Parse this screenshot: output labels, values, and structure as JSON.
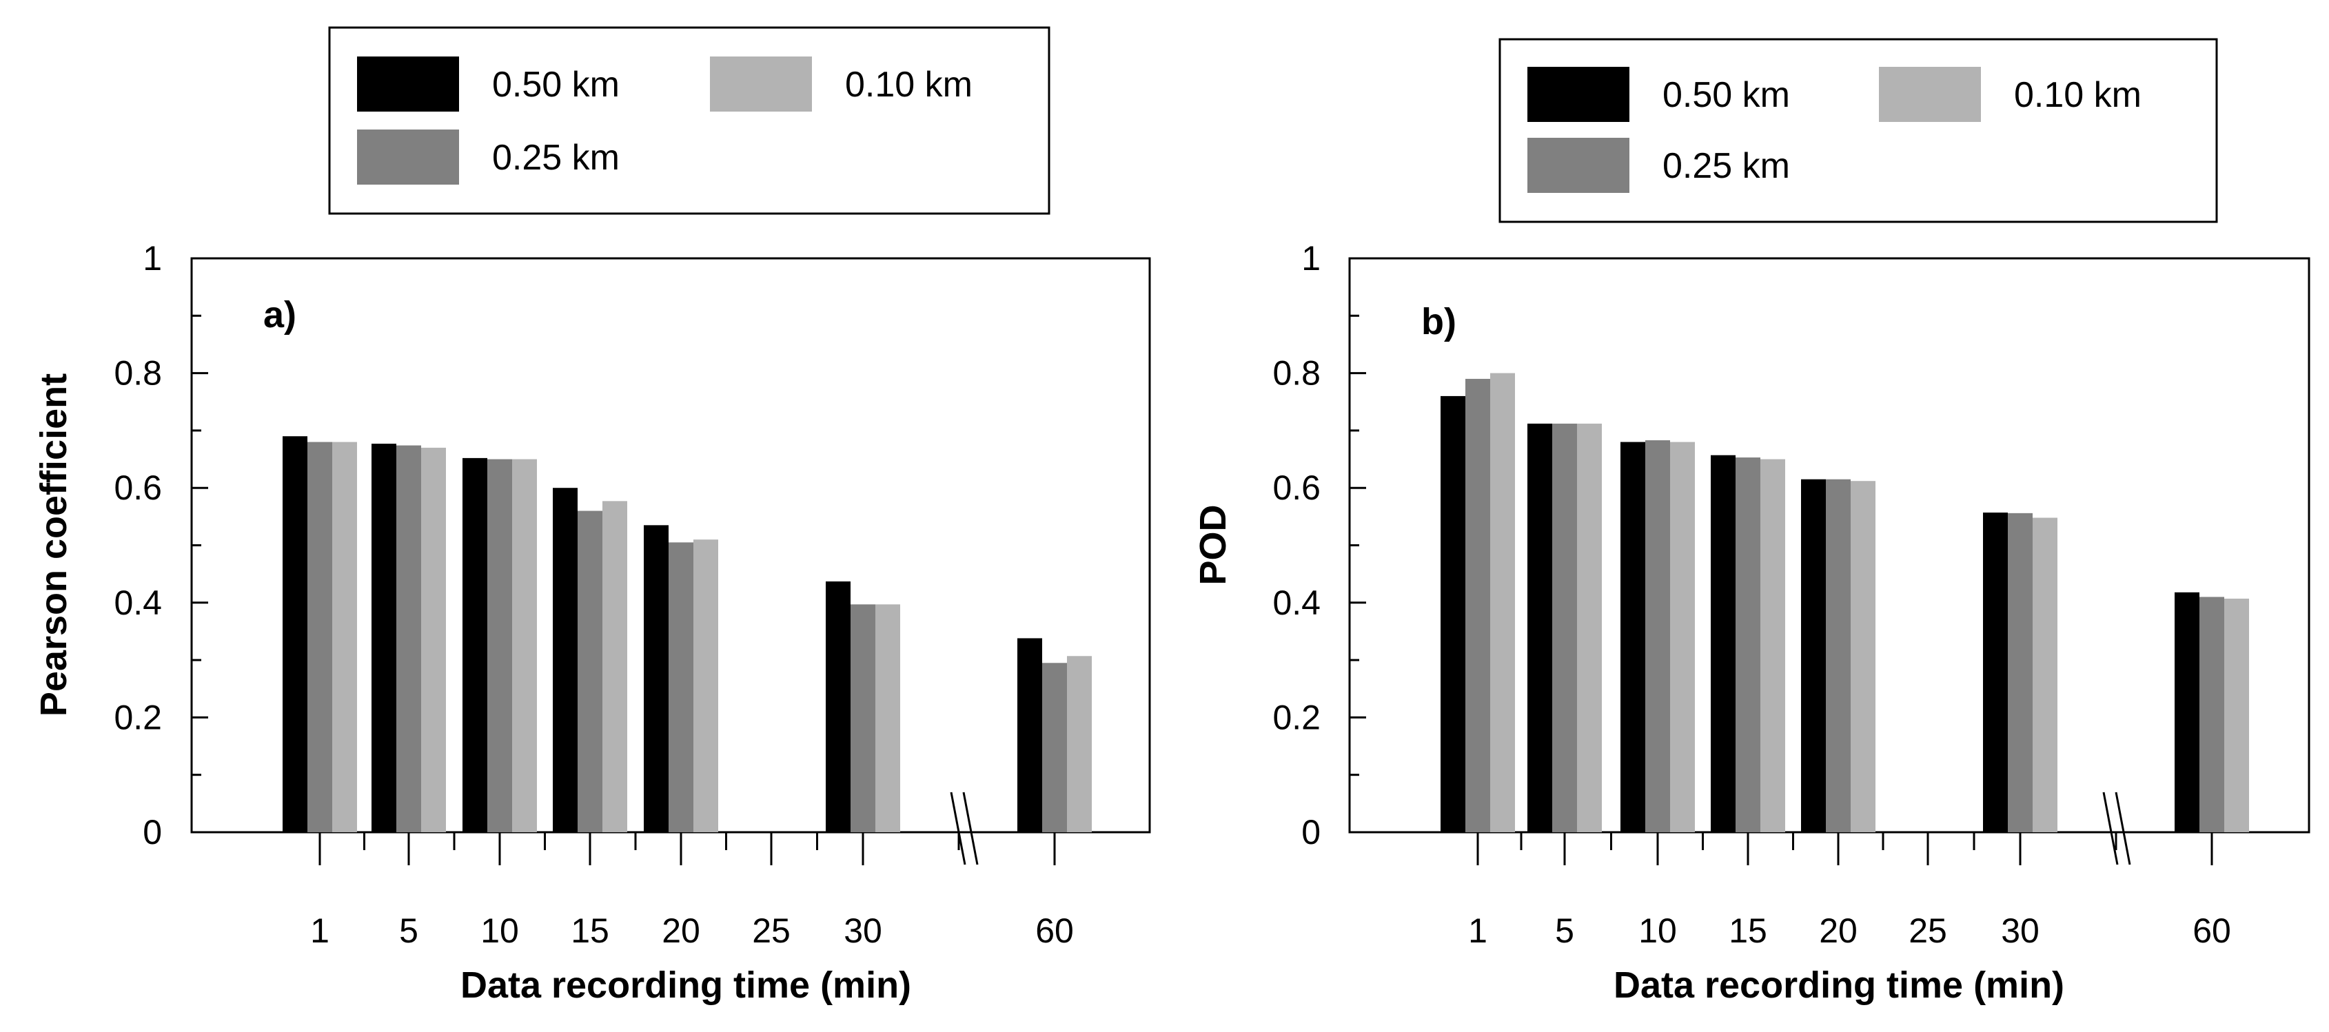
{
  "chart_data": [
    {
      "type": "bar",
      "panel_label": "a)",
      "ylabel": "Pearson coefficient",
      "xlabel": "Data recording time (min)",
      "ylim": [
        0,
        1
      ],
      "y_ticks": [
        "0",
        "0.2",
        "0.4",
        "0.6",
        "0.8",
        "1"
      ],
      "categories": [
        "1",
        "5",
        "10",
        "15",
        "20",
        "25",
        "30",
        "60"
      ],
      "axis_break": "between 30 and 60",
      "legend_position": "top-center",
      "series": [
        {
          "name": "0.50 km",
          "color": "#000000",
          "values": [
            0.69,
            0.677,
            0.652,
            0.6,
            0.535,
            null,
            0.437,
            0.338
          ]
        },
        {
          "name": "0.25 km",
          "color": "#808080",
          "values": [
            0.68,
            0.674,
            0.65,
            0.56,
            0.505,
            null,
            0.397,
            0.295
          ]
        },
        {
          "name": "0.10 km",
          "color": "#b3b3b3",
          "values": [
            0.68,
            0.67,
            0.65,
            0.577,
            0.51,
            null,
            0.397,
            0.307
          ]
        }
      ]
    },
    {
      "type": "bar",
      "panel_label": "b)",
      "ylabel": "POD",
      "xlabel": "Data recording time (min)",
      "ylim": [
        0,
        1
      ],
      "y_ticks": [
        "0",
        "0.2",
        "0.4",
        "0.6",
        "0.8",
        "1"
      ],
      "categories": [
        "1",
        "5",
        "10",
        "15",
        "20",
        "25",
        "30",
        "60"
      ],
      "axis_break": "between 30 and 60",
      "legend_position": "top-center",
      "series": [
        {
          "name": "0.50 km",
          "color": "#000000",
          "values": [
            0.76,
            0.712,
            0.68,
            0.657,
            0.615,
            null,
            0.557,
            0.418
          ]
        },
        {
          "name": "0.25 km",
          "color": "#808080",
          "values": [
            0.79,
            0.712,
            0.683,
            0.653,
            0.615,
            null,
            0.556,
            0.41
          ]
        },
        {
          "name": "0.10 km",
          "color": "#b3b3b3",
          "values": [
            0.8,
            0.712,
            0.68,
            0.65,
            0.612,
            null,
            0.548,
            0.407
          ]
        }
      ]
    }
  ]
}
